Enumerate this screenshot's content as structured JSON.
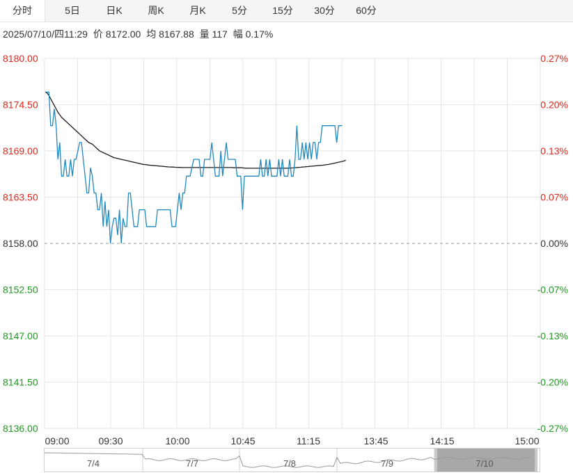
{
  "tabs": [
    {
      "label": "分时",
      "active": true
    },
    {
      "label": "5日",
      "active": false
    },
    {
      "label": "日K",
      "active": false
    },
    {
      "label": "周K",
      "active": false
    },
    {
      "label": "月K",
      "active": false
    },
    {
      "label": "5分",
      "active": false
    },
    {
      "label": "15分",
      "active": false
    },
    {
      "label": "30分",
      "active": false
    },
    {
      "label": "60分",
      "active": false
    }
  ],
  "info": {
    "datetime": "2025/07/10/四11:29",
    "price": "价 8172.00",
    "average": "均 8167.88",
    "volume": "量 117",
    "change": "幅 0.17%"
  },
  "colors": {
    "up": "#e0271b",
    "down": "#1e9a1e",
    "neutral": "#333333",
    "price_line": "#1f87c0",
    "avg_line": "#1a1a1a",
    "grid": "#e6e6e6"
  },
  "chart_data": {
    "type": "line",
    "y_left_ticks": [
      "8180.00",
      "8174.50",
      "8169.00",
      "8163.50",
      "8158.00",
      "8152.50",
      "8147.00",
      "8141.50",
      "8136.00"
    ],
    "y_right_ticks": [
      "0.27%",
      "0.20%",
      "0.13%",
      "0.07%",
      "0.00%",
      "-0.07%",
      "-0.13%",
      "-0.20%",
      "-0.27%"
    ],
    "ylim": [
      8136,
      8180
    ],
    "prev_close": 8158,
    "x_ticks": [
      "09:00",
      "09:30",
      "10:00",
      "10:45",
      "11:15",
      "13:45",
      "14:15",
      "15:00"
    ],
    "grid": true,
    "series": [
      {
        "values": [
          8176,
          8176,
          8176,
          8172,
          8172,
          8174,
          8172,
          8168,
          8170,
          8166,
          8166,
          8168,
          8166,
          8166,
          8168,
          8166,
          8168,
          8168,
          8169,
          8170,
          8170,
          8168,
          8166,
          8164,
          8164,
          8167,
          8166,
          8164,
          8164,
          8162,
          8162,
          8164,
          8160,
          8163,
          8160,
          8162,
          8158,
          8160,
          8161,
          8161,
          8159,
          8162,
          8158,
          8161,
          8160,
          8160,
          8164,
          8164,
          8162,
          8160,
          8160,
          8160,
          8162,
          8162,
          8162,
          8162,
          8160,
          8160,
          8160,
          8160,
          8160,
          8160,
          8162,
          8162,
          8162,
          8162,
          8162,
          8162,
          8162,
          8162,
          8160,
          8160,
          8160,
          8162,
          8164,
          8162,
          8164,
          8164,
          8166,
          8166,
          8166,
          8167,
          8168,
          8168,
          8168,
          8168,
          8166,
          8166,
          8168,
          8168,
          8168,
          8168,
          8170,
          8168,
          8166,
          8166,
          8166,
          8169,
          8166,
          8168,
          8170,
          8168,
          8168,
          8168,
          8168,
          8168,
          8166,
          8166,
          8166,
          8162,
          8166,
          8166,
          8166,
          8166,
          8166,
          8166,
          8166,
          8166,
          8166,
          8168,
          8166,
          8166,
          8168,
          8166,
          8168,
          8166,
          8166,
          8166,
          8166,
          8168,
          8166,
          8168,
          8166,
          8166,
          8166,
          8168,
          8166,
          8166,
          8168,
          8172,
          8168,
          8168,
          8170,
          8168,
          8170,
          8168,
          8170,
          8168,
          8170,
          8170,
          8168,
          8170,
          8170,
          8172,
          8172,
          8172,
          8172,
          8172,
          8172,
          8172,
          8172,
          8170,
          8172,
          8172,
          8172
        ]
      },
      {
        "values": [
          8176,
          8175.9,
          8175.6,
          8175.2,
          8174.8,
          8174.4,
          8174.0,
          8173.6,
          8173.3,
          8173.0,
          8172.8,
          8172.6,
          8172.4,
          8172.2,
          8172.0,
          8171.8,
          8171.6,
          8171.4,
          8171.2,
          8171.0,
          8170.8,
          8170.6,
          8170.4,
          8170.2,
          8170.0,
          8169.9,
          8169.8,
          8169.6,
          8169.4,
          8169.2,
          8169.0,
          8168.9,
          8168.8,
          8168.7,
          8168.6,
          8168.5,
          8168.4,
          8168.3,
          8168.2,
          8168.15,
          8168.1,
          8168.05,
          8168.0,
          8167.95,
          8167.9,
          8167.85,
          8167.8,
          8167.75,
          8167.7,
          8167.65,
          8167.6,
          8167.55,
          8167.5,
          8167.45,
          8167.4,
          8167.38,
          8167.35,
          8167.32,
          8167.3,
          8167.28,
          8167.26,
          8167.24,
          8167.22,
          8167.2,
          8167.18,
          8167.16,
          8167.14,
          8167.12,
          8167.1,
          8167.09,
          8167.08,
          8167.07,
          8167.06,
          8167.05,
          8167.04,
          8167.03,
          8167.02,
          8167.02,
          8167.02,
          8167.02,
          8167.02,
          8167.02,
          8167.02,
          8167.02,
          8167.02,
          8167.02,
          8167.02,
          8167.02,
          8167.02,
          8167.02,
          8167.02,
          8167.02,
          8167.02,
          8167.02,
          8167.02,
          8167.02,
          8167.02,
          8167.02,
          8167.02,
          8167.02,
          8167.02,
          8167.02,
          8167.02,
          8167.02,
          8167.0,
          8167.0,
          8167.0,
          8167.0,
          8167.0,
          8166.98,
          8166.96,
          8166.95,
          8166.94,
          8166.94,
          8166.94,
          8166.94,
          8166.94,
          8166.94,
          8166.94,
          8166.94,
          8166.94,
          8166.94,
          8166.94,
          8166.94,
          8166.94,
          8166.94,
          8166.94,
          8166.94,
          8166.94,
          8166.94,
          8166.94,
          8166.94,
          8166.94,
          8166.94,
          8166.95,
          8166.96,
          8166.97,
          8166.98,
          8167.0,
          8167.02,
          8167.04,
          8167.06,
          8167.08,
          8167.1,
          8167.12,
          8167.14,
          8167.16,
          8167.18,
          8167.2,
          8167.22,
          8167.24,
          8167.26,
          8167.28,
          8167.3,
          8167.32,
          8167.35,
          8167.38,
          8167.42,
          8167.46,
          8167.5,
          8167.55,
          8167.6,
          8167.65,
          8167.7,
          8167.75,
          8167.8,
          8167.88
        ]
      }
    ]
  },
  "navigator": {
    "labels": [
      "7/4",
      "7/7",
      "7/8",
      "7/9",
      "7/10"
    ]
  }
}
